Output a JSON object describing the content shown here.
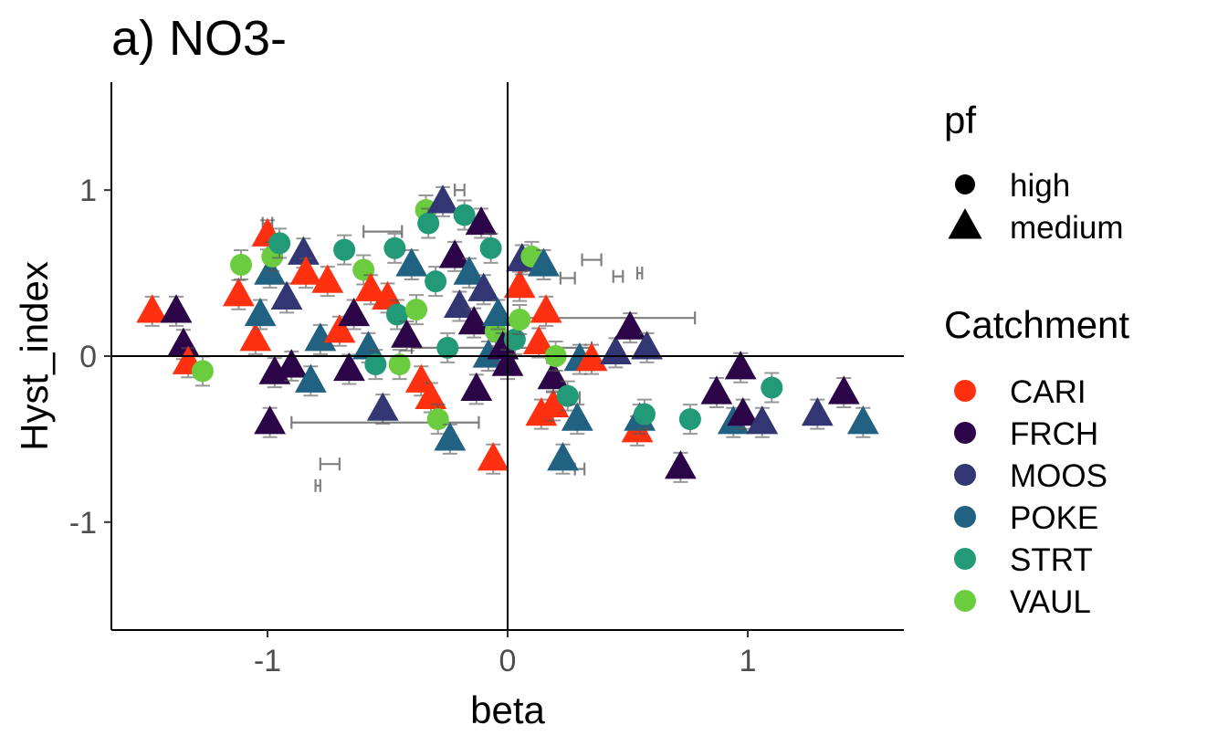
{
  "chart_data": {
    "type": "scatter",
    "title": "a) NO3-",
    "xlabel": "beta",
    "ylabel": "Hyst_index",
    "xlim": [
      -1.65,
      1.65
    ],
    "ylim": [
      -1.65,
      1.65
    ],
    "xticks": [
      "-1",
      "0",
      "1"
    ],
    "yticks": [
      "1",
      "0",
      "-1"
    ],
    "xtick_values": [
      -1,
      0,
      1
    ],
    "ytick_values": [
      1,
      0,
      -1
    ],
    "reference_lines": {
      "x": 0,
      "y": 0
    },
    "grid": false,
    "legend_placement": "right",
    "legend_pf": {
      "title": "pf",
      "items": [
        {
          "label": "high",
          "shape": "circle"
        },
        {
          "label": "medium",
          "shape": "triangle"
        }
      ]
    },
    "legend_catchment": {
      "title": "Catchment",
      "items": [
        {
          "label": "CARI",
          "color": "#FF3010"
        },
        {
          "label": "FRCH",
          "color": "#2C0448"
        },
        {
          "label": "MOOS",
          "color": "#323672"
        },
        {
          "label": "POKE",
          "color": "#216181"
        },
        {
          "label": "STRT",
          "color": "#229A77"
        },
        {
          "label": "VAUL",
          "color": "#6CCC40"
        }
      ]
    },
    "points": [
      {
        "x": -1.48,
        "y": 0.27,
        "c": "CARI",
        "pf": "medium"
      },
      {
        "x": -1.38,
        "y": 0.27,
        "c": "FRCH",
        "pf": "medium"
      },
      {
        "x": -1.35,
        "y": 0.07,
        "c": "FRCH",
        "pf": "medium"
      },
      {
        "x": -1.33,
        "y": -0.04,
        "c": "CARI",
        "pf": "medium"
      },
      {
        "x": -1.27,
        "y": -0.09,
        "c": "VAUL",
        "pf": "high"
      },
      {
        "x": -1.12,
        "y": 0.37,
        "c": "CARI",
        "pf": "medium"
      },
      {
        "x": -1.11,
        "y": 0.55,
        "c": "VAUL",
        "pf": "high"
      },
      {
        "x": -1.05,
        "y": 0.1,
        "c": "CARI",
        "pf": "medium"
      },
      {
        "x": -1.03,
        "y": 0.25,
        "c": "POKE",
        "pf": "medium"
      },
      {
        "x": -1.0,
        "y": 0.73,
        "c": "CARI",
        "pf": "medium"
      },
      {
        "x": -0.99,
        "y": 0.5,
        "c": "POKE",
        "pf": "medium"
      },
      {
        "x": -0.98,
        "y": 0.6,
        "c": "VAUL",
        "pf": "high"
      },
      {
        "x": -0.95,
        "y": 0.68,
        "c": "STRT",
        "pf": "high"
      },
      {
        "x": -0.97,
        "y": -0.1,
        "c": "FRCH",
        "pf": "medium"
      },
      {
        "x": -0.99,
        "y": -0.4,
        "c": "FRCH",
        "pf": "medium"
      },
      {
        "x": -0.92,
        "y": 0.35,
        "c": "MOOS",
        "pf": "medium"
      },
      {
        "x": -0.9,
        "y": -0.06,
        "c": "FRCH",
        "pf": "medium"
      },
      {
        "x": -0.85,
        "y": 0.62,
        "c": "MOOS",
        "pf": "medium"
      },
      {
        "x": -0.84,
        "y": 0.5,
        "c": "CARI",
        "pf": "medium"
      },
      {
        "x": -0.82,
        "y": -0.15,
        "c": "POKE",
        "pf": "medium"
      },
      {
        "x": -0.78,
        "y": 0.1,
        "c": "POKE",
        "pf": "medium"
      },
      {
        "x": -0.75,
        "y": 0.45,
        "c": "CARI",
        "pf": "medium"
      },
      {
        "x": -0.7,
        "y": 0.15,
        "c": "CARI",
        "pf": "medium"
      },
      {
        "x": -0.68,
        "y": 0.64,
        "c": "STRT",
        "pf": "high"
      },
      {
        "x": -0.66,
        "y": -0.08,
        "c": "FRCH",
        "pf": "medium"
      },
      {
        "x": -0.64,
        "y": 0.25,
        "c": "FRCH",
        "pf": "medium"
      },
      {
        "x": -0.6,
        "y": 0.52,
        "c": "VAUL",
        "pf": "high"
      },
      {
        "x": -0.58,
        "y": 0.05,
        "c": "POKE",
        "pf": "medium"
      },
      {
        "x": -0.57,
        "y": 0.4,
        "c": "CARI",
        "pf": "medium"
      },
      {
        "x": -0.55,
        "y": -0.05,
        "c": "STRT",
        "pf": "high"
      },
      {
        "x": -0.52,
        "y": -0.32,
        "c": "MOOS",
        "pf": "medium"
      },
      {
        "x": -0.5,
        "y": 0.35,
        "c": "CARI",
        "pf": "medium"
      },
      {
        "x": -0.47,
        "y": 0.65,
        "c": "STRT",
        "pf": "high"
      },
      {
        "x": -0.46,
        "y": 0.25,
        "c": "STRT",
        "pf": "high"
      },
      {
        "x": -0.45,
        "y": -0.05,
        "c": "VAUL",
        "pf": "high"
      },
      {
        "x": -0.42,
        "y": 0.12,
        "c": "FRCH",
        "pf": "medium"
      },
      {
        "x": -0.4,
        "y": 0.55,
        "c": "POKE",
        "pf": "medium"
      },
      {
        "x": -0.38,
        "y": 0.28,
        "c": "VAUL",
        "pf": "high"
      },
      {
        "x": -0.36,
        "y": -0.15,
        "c": "CARI",
        "pf": "medium"
      },
      {
        "x": -0.34,
        "y": 0.88,
        "c": "VAUL",
        "pf": "high"
      },
      {
        "x": -0.33,
        "y": 0.8,
        "c": "STRT",
        "pf": "high"
      },
      {
        "x": -0.32,
        "y": -0.25,
        "c": "CARI",
        "pf": "medium"
      },
      {
        "x": -0.3,
        "y": 0.45,
        "c": "STRT",
        "pf": "high"
      },
      {
        "x": -0.29,
        "y": -0.38,
        "c": "VAUL",
        "pf": "high"
      },
      {
        "x": -0.27,
        "y": 0.93,
        "c": "MOOS",
        "pf": "medium"
      },
      {
        "x": -0.25,
        "y": 0.05,
        "c": "STRT",
        "pf": "high"
      },
      {
        "x": -0.24,
        "y": -0.5,
        "c": "POKE",
        "pf": "medium"
      },
      {
        "x": -0.22,
        "y": 0.6,
        "c": "FRCH",
        "pf": "medium"
      },
      {
        "x": -0.2,
        "y": 0.3,
        "c": "MOOS",
        "pf": "medium"
      },
      {
        "x": -0.18,
        "y": 0.85,
        "c": "STRT",
        "pf": "high"
      },
      {
        "x": -0.16,
        "y": 0.5,
        "c": "POKE",
        "pf": "medium"
      },
      {
        "x": -0.14,
        "y": 0.2,
        "c": "FRCH",
        "pf": "medium"
      },
      {
        "x": -0.13,
        "y": -0.2,
        "c": "FRCH",
        "pf": "medium"
      },
      {
        "x": -0.11,
        "y": 0.8,
        "c": "FRCH",
        "pf": "medium"
      },
      {
        "x": -0.1,
        "y": 0.4,
        "c": "MOOS",
        "pf": "medium"
      },
      {
        "x": -0.08,
        "y": 0.0,
        "c": "POKE",
        "pf": "medium"
      },
      {
        "x": -0.07,
        "y": 0.65,
        "c": "STRT",
        "pf": "high"
      },
      {
        "x": -0.06,
        "y": -0.62,
        "c": "CARI",
        "pf": "medium"
      },
      {
        "x": -0.05,
        "y": 0.15,
        "c": "VAUL",
        "pf": "high"
      },
      {
        "x": -0.04,
        "y": 0.25,
        "c": "POKE",
        "pf": "medium"
      },
      {
        "x": -0.02,
        "y": 0.05,
        "c": "FRCH",
        "pf": "medium"
      },
      {
        "x": 0.0,
        "y": -0.05,
        "c": "FRCH",
        "pf": "medium"
      },
      {
        "x": 0.03,
        "y": 0.1,
        "c": "STRT",
        "pf": "high"
      },
      {
        "x": 0.05,
        "y": 0.42,
        "c": "CARI",
        "pf": "medium"
      },
      {
        "x": 0.05,
        "y": 0.22,
        "c": "VAUL",
        "pf": "high"
      },
      {
        "x": 0.06,
        "y": 0.58,
        "c": "MOOS",
        "pf": "medium"
      },
      {
        "x": 0.1,
        "y": 0.6,
        "c": "VAUL",
        "pf": "high"
      },
      {
        "x": 0.13,
        "y": 0.08,
        "c": "CARI",
        "pf": "medium"
      },
      {
        "x": 0.15,
        "y": 0.55,
        "c": "POKE",
        "pf": "medium"
      },
      {
        "x": 0.16,
        "y": 0.27,
        "c": "CARI",
        "pf": "medium"
      },
      {
        "x": 0.14,
        "y": -0.35,
        "c": "CARI",
        "pf": "medium"
      },
      {
        "x": 0.19,
        "y": -0.3,
        "c": "CARI",
        "pf": "medium"
      },
      {
        "x": 0.19,
        "y": -0.13,
        "c": "FRCH",
        "pf": "medium"
      },
      {
        "x": 0.2,
        "y": 0.0,
        "c": "VAUL",
        "pf": "high"
      },
      {
        "x": 0.23,
        "y": -0.62,
        "c": "POKE",
        "pf": "medium"
      },
      {
        "x": 0.25,
        "y": -0.24,
        "c": "STRT",
        "pf": "high"
      },
      {
        "x": 0.29,
        "y": -0.38,
        "c": "POKE",
        "pf": "medium"
      },
      {
        "x": 0.3,
        "y": -0.02,
        "c": "POKE",
        "pf": "medium"
      },
      {
        "x": 0.35,
        "y": -0.02,
        "c": "CARI",
        "pf": "medium"
      },
      {
        "x": 0.45,
        "y": 0.02,
        "c": "MOOS",
        "pf": "medium"
      },
      {
        "x": 0.51,
        "y": 0.17,
        "c": "FRCH",
        "pf": "medium"
      },
      {
        "x": 0.54,
        "y": -0.45,
        "c": "CARI",
        "pf": "medium"
      },
      {
        "x": 0.55,
        "y": -0.38,
        "c": "POKE",
        "pf": "medium"
      },
      {
        "x": 0.57,
        "y": -0.35,
        "c": "STRT",
        "pf": "high"
      },
      {
        "x": 0.58,
        "y": 0.05,
        "c": "MOOS",
        "pf": "medium"
      },
      {
        "x": 0.72,
        "y": -0.67,
        "c": "FRCH",
        "pf": "medium"
      },
      {
        "x": 0.76,
        "y": -0.38,
        "c": "STRT",
        "pf": "high"
      },
      {
        "x": 0.87,
        "y": -0.22,
        "c": "FRCH",
        "pf": "medium"
      },
      {
        "x": 0.94,
        "y": -0.4,
        "c": "POKE",
        "pf": "medium"
      },
      {
        "x": 0.97,
        "y": -0.07,
        "c": "FRCH",
        "pf": "medium"
      },
      {
        "x": 0.98,
        "y": -0.35,
        "c": "FRCH",
        "pf": "medium"
      },
      {
        "x": 1.06,
        "y": -0.4,
        "c": "MOOS",
        "pf": "medium"
      },
      {
        "x": 1.1,
        "y": -0.19,
        "c": "STRT",
        "pf": "high"
      },
      {
        "x": 1.29,
        "y": -0.35,
        "c": "MOOS",
        "pf": "medium"
      },
      {
        "x": 1.4,
        "y": -0.22,
        "c": "FRCH",
        "pf": "medium"
      },
      {
        "x": 1.48,
        "y": -0.4,
        "c": "POKE",
        "pf": "medium"
      }
    ],
    "error_bars": [
      {
        "x1": -0.78,
        "x2": -0.7,
        "y": -0.65
      },
      {
        "x1": -0.8,
        "x2": -0.78,
        "y": -0.78
      },
      {
        "x1": 0.31,
        "x2": 0.39,
        "y": 0.58
      },
      {
        "x1": 0.44,
        "x2": 0.48,
        "y": 0.48
      },
      {
        "x1": 0.54,
        "x2": 0.56,
        "y": 0.5
      },
      {
        "x1": -0.22,
        "x2": -0.18,
        "y": 1.0
      },
      {
        "x1": 0.05,
        "x2": 0.78,
        "y": 0.23
      },
      {
        "x1": -0.9,
        "x2": -0.12,
        "y": -0.4
      },
      {
        "x1": -0.4,
        "x2": 0.35,
        "y": 0.05
      },
      {
        "x1": 0.22,
        "x2": 0.28,
        "y": 0.47
      },
      {
        "x1": 0.26,
        "x2": 0.3,
        "y": -0.25
      },
      {
        "x1": 0.28,
        "x2": 0.32,
        "y": -0.68
      },
      {
        "x1": 0.33,
        "x2": 0.38,
        "y": -0.05
      },
      {
        "x1": -1.02,
        "x2": -0.98,
        "y": 0.8
      },
      {
        "x1": -0.6,
        "x2": -0.44,
        "y": 0.75
      }
    ]
  }
}
